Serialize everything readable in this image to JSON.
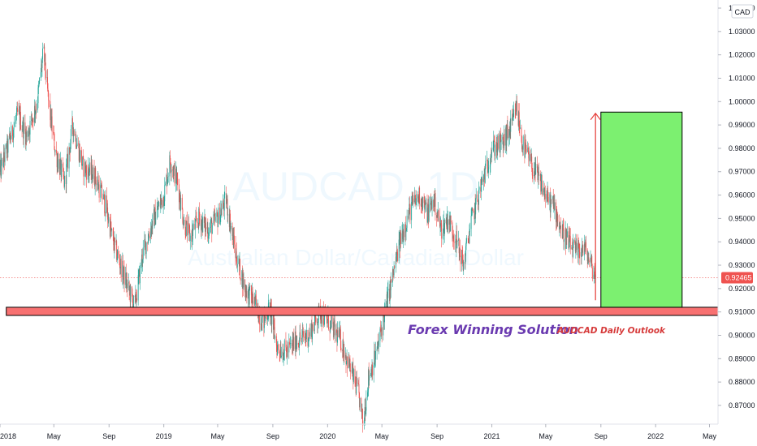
{
  "chart_data": {
    "type": "candlestick",
    "title": "AUDCAD, 1D",
    "subtitle": "Australian Dollar/Canadian Dollar",
    "currency": "CAD",
    "annotation_brand": "Forex Winning Solution",
    "annotation_outlook": "AUDCAD Daily Outlook",
    "last_price": 0.92465,
    "last_price_label": "0.92465",
    "ylim": [
      0.862,
      1.04
    ],
    "y_ticks": [
      {
        "v": 0.87,
        "label": "0.87000"
      },
      {
        "v": 0.88,
        "label": "0.88000"
      },
      {
        "v": 0.89,
        "label": "0.89000"
      },
      {
        "v": 0.9,
        "label": "0.90000"
      },
      {
        "v": 0.91,
        "label": "0.91000"
      },
      {
        "v": 0.92,
        "label": "0.92000"
      },
      {
        "v": 0.93,
        "label": "0.93000"
      },
      {
        "v": 0.94,
        "label": "0.94000"
      },
      {
        "v": 0.95,
        "label": "0.95000"
      },
      {
        "v": 0.96,
        "label": "0.96000"
      },
      {
        "v": 0.97,
        "label": "0.97000"
      },
      {
        "v": 0.98,
        "label": "0.98000"
      },
      {
        "v": 0.99,
        "label": "0.99000"
      },
      {
        "v": 1.0,
        "label": "1.00000"
      },
      {
        "v": 1.01,
        "label": "1.01000"
      },
      {
        "v": 1.02,
        "label": "1.02000"
      },
      {
        "v": 1.03,
        "label": "1.03000"
      },
      {
        "v": 1.04,
        "label": "1.04000"
      }
    ],
    "x_domain": [
      "2018-01-01",
      "2022-05-20"
    ],
    "x_ticks": [
      {
        "date": "2018-01-01",
        "label": "2018"
      },
      {
        "date": "2018-05-01",
        "label": "May"
      },
      {
        "date": "2018-09-01",
        "label": "Sep"
      },
      {
        "date": "2019-01-01",
        "label": "2019"
      },
      {
        "date": "2019-05-01",
        "label": "May"
      },
      {
        "date": "2019-09-01",
        "label": "Sep"
      },
      {
        "date": "2020-01-01",
        "label": "2020"
      },
      {
        "date": "2020-05-01",
        "label": "May"
      },
      {
        "date": "2020-09-01",
        "label": "Sep"
      },
      {
        "date": "2021-01-01",
        "label": "2021"
      },
      {
        "date": "2021-05-01",
        "label": "May"
      },
      {
        "date": "2021-09-01",
        "label": "Sep"
      },
      {
        "date": "2022-01-01",
        "label": "2022"
      },
      {
        "date": "2022-05-01",
        "label": "May"
      }
    ],
    "price_path": [
      {
        "date": "2018-01-01",
        "price": 0.97
      },
      {
        "date": "2018-02-10",
        "price": 0.995
      },
      {
        "date": "2018-03-01",
        "price": 0.985
      },
      {
        "date": "2018-03-25",
        "price": 1.0
      },
      {
        "date": "2018-04-08",
        "price": 1.022
      },
      {
        "date": "2018-04-20",
        "price": 0.998
      },
      {
        "date": "2018-05-05",
        "price": 0.978
      },
      {
        "date": "2018-05-25",
        "price": 0.965
      },
      {
        "date": "2018-06-12",
        "price": 0.99
      },
      {
        "date": "2018-07-05",
        "price": 0.972
      },
      {
        "date": "2018-08-01",
        "price": 0.968
      },
      {
        "date": "2018-08-25",
        "price": 0.955
      },
      {
        "date": "2018-09-10",
        "price": 0.94
      },
      {
        "date": "2018-10-05",
        "price": 0.925
      },
      {
        "date": "2018-10-28",
        "price": 0.912
      },
      {
        "date": "2018-11-15",
        "price": 0.935
      },
      {
        "date": "2018-12-10",
        "price": 0.95
      },
      {
        "date": "2019-01-01",
        "price": 0.96
      },
      {
        "date": "2019-01-15",
        "price": 0.975
      },
      {
        "date": "2019-02-01",
        "price": 0.965
      },
      {
        "date": "2019-02-15",
        "price": 0.948
      },
      {
        "date": "2019-03-01",
        "price": 0.942
      },
      {
        "date": "2019-03-20",
        "price": 0.95
      },
      {
        "date": "2019-04-10",
        "price": 0.945
      },
      {
        "date": "2019-05-01",
        "price": 0.95
      },
      {
        "date": "2019-05-20",
        "price": 0.958
      },
      {
        "date": "2019-06-10",
        "price": 0.935
      },
      {
        "date": "2019-07-01",
        "price": 0.92
      },
      {
        "date": "2019-07-20",
        "price": 0.915
      },
      {
        "date": "2019-08-10",
        "price": 0.905
      },
      {
        "date": "2019-08-25",
        "price": 0.912
      },
      {
        "date": "2019-09-10",
        "price": 0.895
      },
      {
        "date": "2019-10-01",
        "price": 0.893
      },
      {
        "date": "2019-10-25",
        "price": 0.898
      },
      {
        "date": "2019-11-20",
        "price": 0.9
      },
      {
        "date": "2019-12-15",
        "price": 0.91
      },
      {
        "date": "2020-01-05",
        "price": 0.905
      },
      {
        "date": "2020-01-30",
        "price": 0.898
      },
      {
        "date": "2020-02-20",
        "price": 0.886
      },
      {
        "date": "2020-03-10",
        "price": 0.875
      },
      {
        "date": "2020-03-20",
        "price": 0.862
      },
      {
        "date": "2020-04-01",
        "price": 0.882
      },
      {
        "date": "2020-04-20",
        "price": 0.893
      },
      {
        "date": "2020-05-05",
        "price": 0.908
      },
      {
        "date": "2020-05-25",
        "price": 0.925
      },
      {
        "date": "2020-06-10",
        "price": 0.94
      },
      {
        "date": "2020-07-05",
        "price": 0.955
      },
      {
        "date": "2020-07-25",
        "price": 0.96
      },
      {
        "date": "2020-08-10",
        "price": 0.952
      },
      {
        "date": "2020-08-25",
        "price": 0.958
      },
      {
        "date": "2020-09-10",
        "price": 0.945
      },
      {
        "date": "2020-09-25",
        "price": 0.95
      },
      {
        "date": "2020-10-15",
        "price": 0.94
      },
      {
        "date": "2020-10-30",
        "price": 0.93
      },
      {
        "date": "2020-11-15",
        "price": 0.948
      },
      {
        "date": "2020-12-10",
        "price": 0.965
      },
      {
        "date": "2021-01-01",
        "price": 0.98
      },
      {
        "date": "2021-01-25",
        "price": 0.982
      },
      {
        "date": "2021-02-15",
        "price": 0.99
      },
      {
        "date": "2021-02-25",
        "price": 0.998
      },
      {
        "date": "2021-03-10",
        "price": 0.982
      },
      {
        "date": "2021-04-01",
        "price": 0.972
      },
      {
        "date": "2021-04-20",
        "price": 0.965
      },
      {
        "date": "2021-05-05",
        "price": 0.958
      },
      {
        "date": "2021-05-20",
        "price": 0.955
      },
      {
        "date": "2021-06-05",
        "price": 0.945
      },
      {
        "date": "2021-06-25",
        "price": 0.938
      },
      {
        "date": "2021-07-10",
        "price": 0.935
      },
      {
        "date": "2021-07-25",
        "price": 0.938
      },
      {
        "date": "2021-08-10",
        "price": 0.93
      },
      {
        "date": "2021-08-20",
        "price": 0.925
      }
    ],
    "support_zone": {
      "low": 0.9085,
      "high": 0.912,
      "start": "2018-01-15",
      "end": "2022-05-20"
    },
    "target_zone": {
      "low": 0.912,
      "high": 0.9955,
      "start": "2021-09-01",
      "end": "2022-03-01"
    },
    "arrow": {
      "date": "2021-08-20",
      "from": 0.915,
      "to": 0.995
    },
    "colors": {
      "up": "#26a69a",
      "down": "#ef5350",
      "support_fill": "#f87171",
      "target_fill": "#7cf070",
      "arrow": "#e53935",
      "watermark": "#2196f3",
      "brand": "#6a3ab0",
      "outlook": "#d63a3a",
      "price_badge": "#ef5350"
    }
  }
}
